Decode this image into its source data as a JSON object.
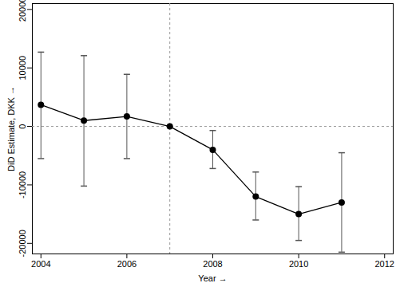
{
  "chart_data": {
    "type": "line",
    "x_label": "Year",
    "y_label": "DiD Estimate, DKK",
    "x": [
      2004,
      2005,
      2006,
      2007,
      2008,
      2009,
      2010,
      2011
    ],
    "series": [
      {
        "name": "DiD Estimate",
        "color": "#000000",
        "marker": "circle",
        "line_style": "solid",
        "values": [
          3700,
          1000,
          1700,
          0,
          -4000,
          -12000,
          -15000,
          -13000
        ],
        "error_low": [
          -5500,
          -10200,
          -5500,
          null,
          -7200,
          -16000,
          -19500,
          -21500
        ],
        "error_high": [
          12700,
          12100,
          8900,
          null,
          -700,
          -7800,
          -10300,
          -4500
        ]
      }
    ],
    "reference_lines": {
      "x": 2007,
      "y": 0
    },
    "xlim": [
      2003.8,
      2012.2
    ],
    "xticks": [
      2004,
      2006,
      2008,
      2010,
      2012
    ],
    "ylim": [
      -21800,
      21000
    ],
    "yticks": [
      -20000,
      -10000,
      0,
      10000,
      20000
    ],
    "grid": false
  }
}
